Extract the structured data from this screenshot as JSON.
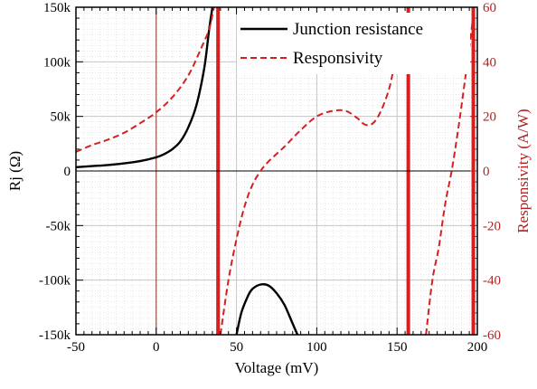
{
  "chart_data": {
    "type": "line",
    "xlabel": "Voltage (mV)",
    "ylabel_left": "Rj (Ω)",
    "ylabel_right": "Responsivity (A/W)",
    "xlim": [
      -50,
      200
    ],
    "ylim_left": [
      -150000,
      150000
    ],
    "ylim_right": [
      -60,
      60
    ],
    "x_ticks": [
      -50,
      0,
      50,
      100,
      150,
      200
    ],
    "x_tick_labels": [
      "-50",
      "0",
      "50",
      "100",
      "150",
      "200"
    ],
    "y_left_ticks": [
      150000,
      100000,
      50000,
      0,
      -50000,
      -100000,
      -150000
    ],
    "y_left_tick_labels": [
      "150k",
      "100k",
      "50k",
      "0",
      "-50k",
      "-100k",
      "-150k"
    ],
    "y_right_ticks": [
      60,
      40,
      20,
      0,
      -20,
      -40,
      -60
    ],
    "y_right_tick_labels": [
      "60",
      "40",
      "20",
      "0",
      "-20",
      "-40",
      "-60"
    ],
    "grid": true,
    "legend_position": "top-right",
    "series": [
      {
        "name": "Junction resistance",
        "axis": "left",
        "color": "#000000",
        "dash": "solid",
        "segments": [
          [
            [
              -50,
              3500
            ],
            [
              -40,
              4500
            ],
            [
              -30,
              5500
            ],
            [
              -20,
              7000
            ],
            [
              -10,
              9000
            ],
            [
              0,
              12500
            ],
            [
              5,
              15500
            ],
            [
              10,
              20000
            ],
            [
              15,
              27000
            ],
            [
              20,
              40000
            ],
            [
              25,
              60000
            ],
            [
              30,
              95000
            ],
            [
              33,
              130000
            ],
            [
              35,
              150000
            ]
          ],
          [
            [
              50,
              -150000
            ],
            [
              53,
              -130000
            ],
            [
              57,
              -115000
            ],
            [
              60,
              -108000
            ],
            [
              65,
              -104000
            ],
            [
              70,
              -105000
            ],
            [
              75,
              -112000
            ],
            [
              80,
              -123000
            ],
            [
              85,
              -140000
            ],
            [
              88,
              -150000
            ]
          ]
        ]
      },
      {
        "name": "Responsivity",
        "axis": "right",
        "color": "#d62020",
        "dash": "dashed",
        "segments": [
          [
            [
              -50,
              7
            ],
            [
              -40,
              9.5
            ],
            [
              -30,
              11.5
            ],
            [
              -20,
              14
            ],
            [
              -10,
              17.5
            ],
            [
              0,
              21.5
            ],
            [
              10,
              27
            ],
            [
              20,
              35
            ],
            [
              28,
              45
            ],
            [
              33,
              52
            ],
            [
              36,
              60
            ]
          ],
          [
            [
              40,
              -60
            ],
            [
              45,
              -40
            ],
            [
              50,
              -25
            ],
            [
              55,
              -13
            ],
            [
              60,
              -5
            ],
            [
              65,
              0
            ],
            [
              70,
              3.5
            ],
            [
              80,
              9
            ],
            [
              90,
              15
            ],
            [
              100,
              20
            ],
            [
              110,
              22
            ],
            [
              118,
              22
            ],
            [
              125,
              19.5
            ],
            [
              130,
              17
            ],
            [
              135,
              17.5
            ],
            [
              140,
              22
            ],
            [
              145,
              30
            ],
            [
              148,
              38
            ]
          ],
          [
            [
              168,
              -60
            ],
            [
              172,
              -40
            ],
            [
              176,
              -28
            ],
            [
              180,
              -12
            ],
            [
              184,
              0
            ],
            [
              188,
              15
            ],
            [
              192,
              32
            ],
            [
              196,
              50
            ],
            [
              198,
              60
            ]
          ]
        ]
      }
    ],
    "vertical_markers": [
      {
        "x": 0,
        "color": "#8b3a2a",
        "width": 1
      },
      {
        "x": 38.5,
        "color": "#d62020",
        "width": 4
      },
      {
        "x": 157,
        "color": "#d62020",
        "width": 4
      },
      {
        "x": 197.5,
        "color": "#d62020",
        "width": 4
      }
    ]
  }
}
